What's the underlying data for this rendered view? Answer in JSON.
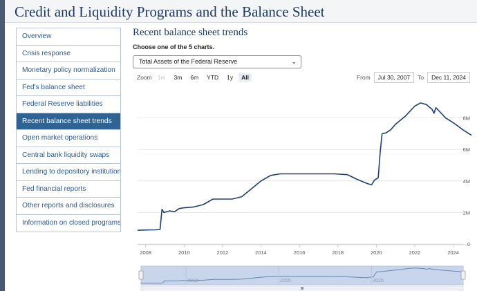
{
  "page": {
    "title": "Credit and Liquidity Programs and the Balance Sheet"
  },
  "sidebar": {
    "items": [
      {
        "label": "Overview",
        "active": false
      },
      {
        "label": "Crisis response",
        "active": false
      },
      {
        "label": "Monetary policy normalization",
        "active": false
      },
      {
        "label": "Fed's balance sheet",
        "active": false
      },
      {
        "label": "Federal Reserve liabilities",
        "active": false
      },
      {
        "label": "Recent balance sheet trends",
        "active": true
      },
      {
        "label": "Open market operations",
        "active": false
      },
      {
        "label": "Central bank liquidity swaps",
        "active": false
      },
      {
        "label": "Lending to depository institutions",
        "active": false
      },
      {
        "label": "Fed financial reports",
        "active": false
      },
      {
        "label": "Other reports and disclosures",
        "active": false
      },
      {
        "label": "Information on closed programs",
        "active": false
      }
    ]
  },
  "main": {
    "heading": "Recent balance sheet trends",
    "choose_label": "Choose one of the 5 charts.",
    "select_value": "Total Assets of the Federal Reserve"
  },
  "zoom": {
    "label": "Zoom",
    "buttons": [
      {
        "label": "1m",
        "state": "disabled"
      },
      {
        "label": "3m",
        "state": "normal"
      },
      {
        "label": "6m",
        "state": "normal"
      },
      {
        "label": "YTD",
        "state": "normal"
      },
      {
        "label": "1y",
        "state": "normal"
      },
      {
        "label": "All",
        "state": "selected"
      }
    ]
  },
  "range": {
    "from_label": "From",
    "from_value": "Jul 30, 2007",
    "to_label": "To",
    "to_value": "Dec 11, 2024"
  },
  "chart_data": {
    "type": "line",
    "series": [
      {
        "x": [
          2007.58,
          2008.0,
          2008.5,
          2008.75,
          2008.85,
          2008.95,
          2009.25,
          2009.5,
          2009.75,
          2010.0,
          2010.5,
          2011.0,
          2011.5,
          2012.0,
          2012.5,
          2013.0,
          2013.5,
          2014.0,
          2014.5,
          2015.0,
          2016.0,
          2017.0,
          2017.8,
          2018.5,
          2019.0,
          2019.5,
          2019.75,
          2019.9,
          2020.1,
          2020.2,
          2020.3,
          2020.5,
          2020.75,
          2021.0,
          2021.5,
          2022.0,
          2022.3,
          2022.6,
          2022.9,
          2023.0,
          2023.1,
          2023.3,
          2023.6,
          2024.0,
          2024.5,
          2024.95
        ],
        "values": [
          0.87,
          0.89,
          0.9,
          0.92,
          2.2,
          2.0,
          2.1,
          2.05,
          2.25,
          2.3,
          2.35,
          2.5,
          2.85,
          2.85,
          2.85,
          3.0,
          3.5,
          4.0,
          4.35,
          4.45,
          4.45,
          4.45,
          4.45,
          4.4,
          4.1,
          3.85,
          3.75,
          4.05,
          4.2,
          5.8,
          7.0,
          7.05,
          7.25,
          7.6,
          8.1,
          8.75,
          8.95,
          8.85,
          8.55,
          8.3,
          8.65,
          8.4,
          8.0,
          7.7,
          7.25,
          6.9
        ]
      }
    ],
    "xticks": [
      "2008",
      "2010",
      "2012",
      "2014",
      "2016",
      "2018",
      "2020",
      "2022",
      "2024"
    ],
    "yticks": [
      "0",
      "2M",
      "4M",
      "6M",
      "8M"
    ],
    "xlim": [
      2007.58,
      2024.95
    ],
    "ylim": [
      0,
      10
    ],
    "grid": "horizontal",
    "colors": {
      "line": "#1c3f72",
      "grid": "#e6e6e6",
      "navigator_fill": "#c8d5ea",
      "navigator_line": "#6685b5"
    },
    "navigator": {
      "xticks": [
        "2010",
        "2015",
        "2020"
      ]
    }
  }
}
